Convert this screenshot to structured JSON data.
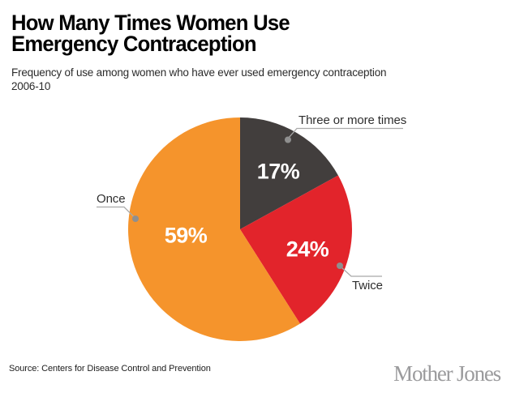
{
  "header": {
    "title_line1": "How Many Times Women Use",
    "title_line2": "Emergency Contraception",
    "subtitle_line1": "Frequency of use among women who have ever used emergency contraception",
    "subtitle_line2": "2006-10"
  },
  "chart_data": {
    "type": "pie",
    "title": "How Many Times Women Use Emergency Contraception",
    "subtitle": "Frequency of use among women who have ever used emergency contraception 2006-10",
    "start_angle_deg": 0,
    "direction": "clockwise",
    "slices": [
      {
        "label": "Three or more times",
        "value_pct": 17,
        "display_value": "17%",
        "color": "#423E3D"
      },
      {
        "label": "Twice",
        "value_pct": 24,
        "display_value": "24%",
        "color": "#E2242B"
      },
      {
        "label": "Once",
        "value_pct": 59,
        "display_value": "59%",
        "color": "#F5942C"
      }
    ],
    "value_label_color": "#FFFFFF",
    "callout_line_color": "#A9A9A9",
    "callout_dot_color": "#8F8F8F"
  },
  "footer": {
    "source": "Source: Centers for Disease Control and Prevention",
    "brand": "Mother Jones",
    "brand_color": "#9B9B9D"
  }
}
